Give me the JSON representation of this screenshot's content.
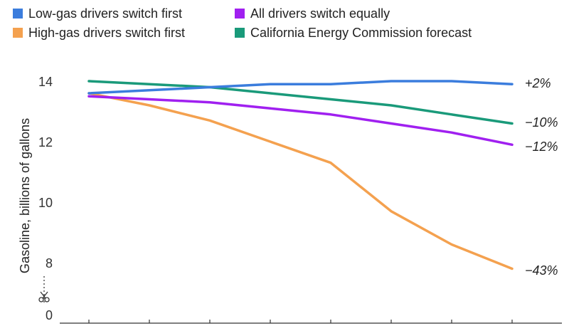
{
  "chart_data": {
    "type": "line",
    "title": "",
    "xlabel": "",
    "ylabel": "Gasoline, billions of gallons",
    "ylim": [
      0,
      14
    ],
    "y_ticks": [
      "0",
      "8",
      "10",
      "12",
      "14"
    ],
    "axis_break": true,
    "x_points": 8,
    "legend_position": "top-left",
    "series": [
      {
        "name": "Low-gas drivers switch first",
        "color": "#3b7ddd",
        "values": [
          13.6,
          13.7,
          13.8,
          13.9,
          13.9,
          14.0,
          14.0,
          13.9
        ],
        "end_label": "+2%"
      },
      {
        "name": "High-gas drivers switch first",
        "color": "#f4a14f",
        "values": [
          13.6,
          13.2,
          12.7,
          12.0,
          11.3,
          9.7,
          8.6,
          7.8
        ],
        "end_label": "−43%"
      },
      {
        "name": "All drivers switch equally",
        "color": "#a020f0",
        "values": [
          13.5,
          13.4,
          13.3,
          13.1,
          12.9,
          12.6,
          12.3,
          11.9
        ],
        "end_label": "−12%"
      },
      {
        "name": "California Energy Commission forecast",
        "color": "#1a9a7a",
        "values": [
          14.0,
          13.9,
          13.8,
          13.6,
          13.4,
          13.2,
          12.9,
          12.6
        ],
        "end_label": "−10%"
      }
    ]
  }
}
